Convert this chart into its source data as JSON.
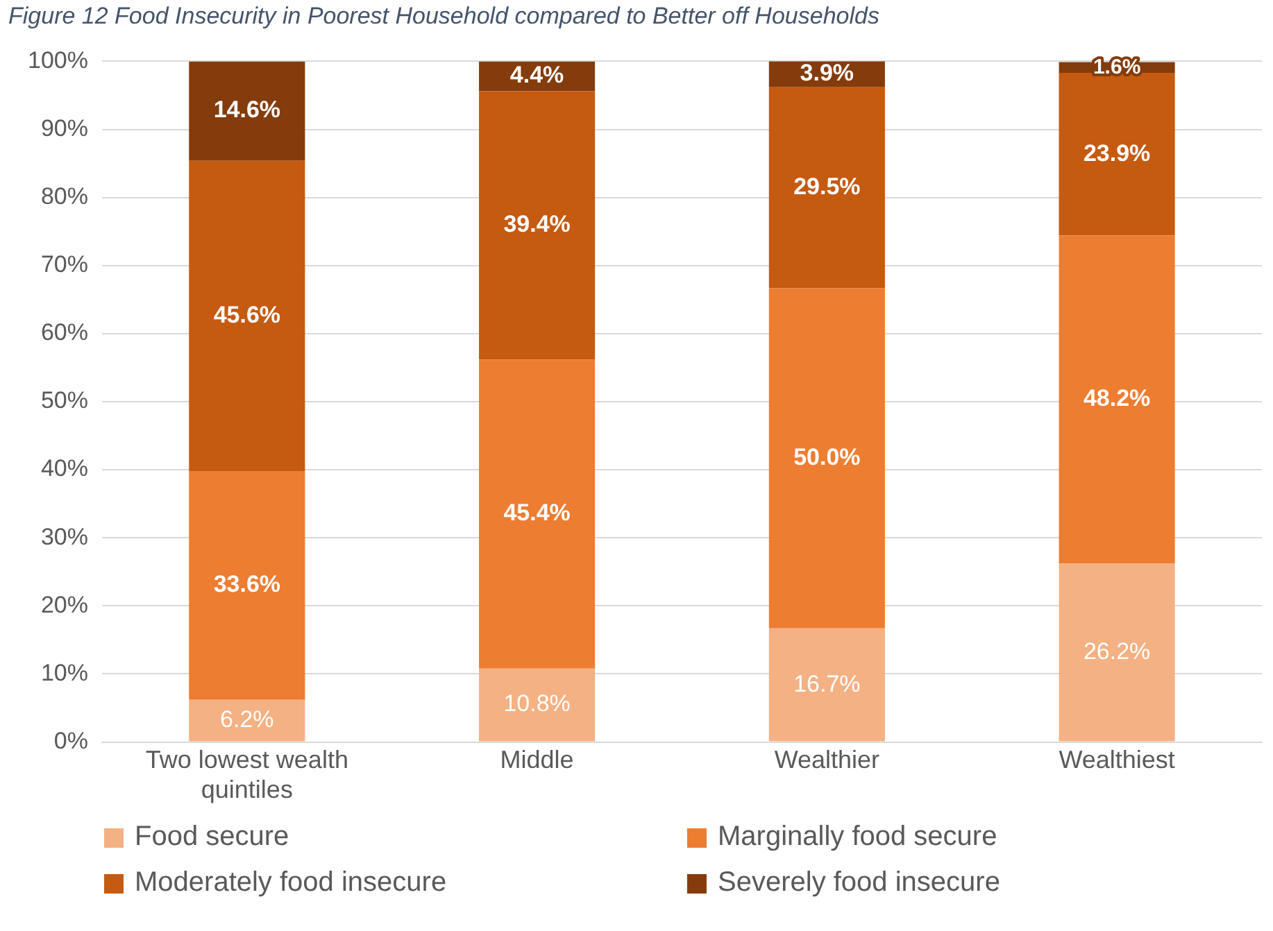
{
  "chart_data": {
    "type": "bar",
    "title": "Figure 12 Food Insecurity in Poorest Household compared to Better off Households",
    "categories": [
      "Two lowest wealth quintiles",
      "Middle",
      "Wealthier",
      "Wealthiest"
    ],
    "stacked": true,
    "series": [
      {
        "name": "Food secure",
        "color": "#f4b183",
        "values": [
          6.2,
          10.8,
          16.7,
          26.2
        ],
        "value_labels": [
          "6.2%",
          "10.8%",
          "16.7%",
          "26.2%"
        ]
      },
      {
        "name": "Marginally food secure",
        "color": "#ed7d31",
        "values": [
          33.6,
          45.4,
          50.0,
          48.2
        ],
        "value_labels": [
          "33.6%",
          "45.4%",
          "50.0%",
          "48.2%"
        ]
      },
      {
        "name": "Moderately food insecure",
        "color": "#c55a11",
        "values": [
          45.6,
          39.4,
          29.5,
          23.9
        ],
        "value_labels": [
          "45.6%",
          "39.4%",
          "29.5%",
          "23.9%"
        ]
      },
      {
        "name": "Severely food insecure",
        "color": "#843c0c",
        "values": [
          14.6,
          4.4,
          3.9,
          1.6
        ],
        "value_labels": [
          "14.6%",
          "4.4%",
          "3.9%",
          "1.6%"
        ]
      }
    ],
    "ylim": [
      0,
      100
    ],
    "yticks": [
      {
        "value": 0,
        "label": "0%"
      },
      {
        "value": 10,
        "label": "10%"
      },
      {
        "value": 20,
        "label": "20%"
      },
      {
        "value": 30,
        "label": "30%"
      },
      {
        "value": 40,
        "label": "40%"
      },
      {
        "value": 50,
        "label": "50%"
      },
      {
        "value": 60,
        "label": "60%"
      },
      {
        "value": 70,
        "label": "70%"
      },
      {
        "value": 80,
        "label": "80%"
      },
      {
        "value": 90,
        "label": "90%"
      },
      {
        "value": 100,
        "label": "100%"
      }
    ],
    "grid": "y",
    "legend": "bottom"
  }
}
